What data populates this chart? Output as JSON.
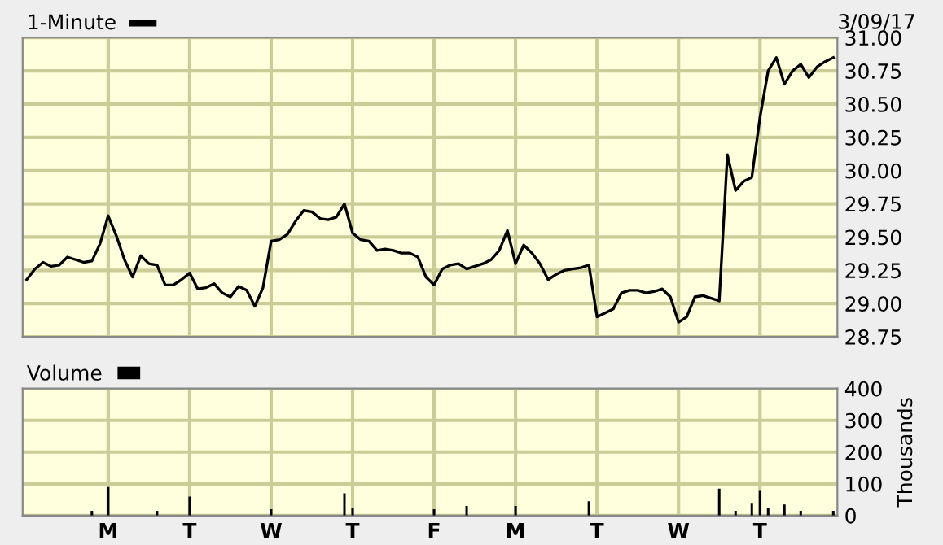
{
  "chart_data": [
    {
      "type": "line",
      "annotations": [
        "3/09/17"
      ],
      "legend": "top left",
      "grid": true,
      "tick_labels": "y",
      "categories": [
        null,
        null,
        null,
        null,
        null,
        null,
        null,
        null,
        null,
        null,
        null,
        null,
        null,
        null,
        null,
        null,
        null,
        null,
        null,
        null,
        null,
        null,
        null,
        null,
        null,
        null,
        null,
        null,
        null,
        null,
        null,
        null,
        null,
        null,
        null,
        null,
        null,
        null,
        null,
        null,
        null,
        null,
        null,
        null,
        null,
        null,
        null,
        null,
        null,
        null,
        null,
        null,
        null,
        null,
        null,
        null,
        null,
        null,
        null,
        null,
        null,
        null,
        null,
        null,
        null,
        null,
        null,
        null,
        null,
        null,
        null,
        null,
        null,
        null,
        null,
        null,
        null,
        null,
        null,
        null,
        null,
        null,
        null,
        null,
        null,
        null,
        null,
        null,
        null,
        null,
        null,
        null,
        null,
        null,
        null,
        null,
        null,
        null,
        null,
        null
      ],
      "ylim": [
        28.75,
        31.0
      ],
      "yticks": [
        {
          "value": 28.75,
          "label": "28.75"
        },
        {
          "value": 29.0,
          "label": "29.00"
        },
        {
          "value": 29.25,
          "label": "29.25"
        },
        {
          "value": 29.5,
          "label": "29.50"
        },
        {
          "value": 29.75,
          "label": "29.75"
        },
        {
          "value": 30.0,
          "label": "30.00"
        },
        {
          "value": 30.25,
          "label": "30.25"
        },
        {
          "value": 30.5,
          "label": "30.50"
        },
        {
          "value": 30.75,
          "label": "30.75"
        },
        {
          "value": 31.0,
          "label": "31.00"
        }
      ],
      "series": [
        {
          "name": "1-Minute",
          "color": "#000000",
          "values": [
            29.18,
            29.26,
            29.31,
            29.28,
            29.29,
            29.35,
            29.33,
            29.31,
            29.32,
            29.45,
            29.66,
            29.51,
            29.33,
            29.2,
            29.36,
            29.3,
            29.29,
            29.14,
            29.14,
            29.18,
            29.23,
            29.11,
            29.12,
            29.15,
            29.08,
            29.05,
            29.13,
            29.1,
            28.98,
            29.12,
            29.47,
            29.48,
            29.52,
            29.62,
            29.7,
            29.69,
            29.64,
            29.63,
            29.65,
            29.75,
            29.53,
            29.48,
            29.47,
            29.4,
            29.41,
            29.4,
            29.38,
            29.38,
            29.35,
            29.2,
            29.14,
            29.26,
            29.29,
            29.3,
            29.26,
            29.28,
            29.3,
            29.33,
            29.4,
            29.55,
            29.3,
            29.44,
            29.38,
            29.3,
            29.18,
            29.22,
            29.25,
            29.26,
            29.27,
            29.29,
            28.9,
            28.93,
            28.96,
            29.08,
            29.1,
            29.1,
            29.08,
            29.09,
            29.11,
            29.05,
            28.86,
            28.9,
            29.05,
            29.06,
            29.04,
            29.02,
            30.12,
            29.85,
            29.92,
            29.95,
            30.4,
            30.75,
            30.85,
            30.65,
            30.75,
            30.8,
            30.7,
            30.78,
            30.82,
            30.85
          ]
        }
      ]
    },
    {
      "type": "bar",
      "legend": "top left",
      "grid": true,
      "ylabel": "Thousands",
      "categories": [
        null,
        null,
        null,
        null,
        null,
        null,
        null,
        null,
        null,
        null,
        "M",
        null,
        null,
        null,
        null,
        null,
        null,
        null,
        null,
        null,
        "T",
        null,
        null,
        null,
        null,
        null,
        null,
        null,
        null,
        null,
        "W",
        null,
        null,
        null,
        null,
        null,
        null,
        null,
        null,
        null,
        "T",
        null,
        null,
        null,
        null,
        null,
        null,
        null,
        null,
        null,
        "F",
        null,
        null,
        null,
        null,
        null,
        null,
        null,
        null,
        null,
        "M",
        null,
        null,
        null,
        null,
        null,
        null,
        null,
        null,
        null,
        "T",
        null,
        null,
        null,
        null,
        null,
        null,
        null,
        null,
        null,
        "W",
        null,
        null,
        null,
        null,
        null,
        null,
        null,
        null,
        null,
        "T",
        null,
        null,
        null,
        null,
        null,
        null,
        null,
        null,
        null
      ],
      "ylim": [
        0,
        400
      ],
      "yticks": [
        0,
        100,
        200,
        300,
        400
      ],
      "series": [
        {
          "name": "Volume",
          "color": "#000000",
          "values": [
            0,
            0,
            0,
            0,
            0,
            0,
            0,
            0,
            15,
            0,
            90,
            0,
            0,
            0,
            0,
            0,
            15,
            0,
            0,
            0,
            60,
            0,
            0,
            0,
            0,
            0,
            0,
            0,
            0,
            0,
            20,
            0,
            0,
            0,
            0,
            0,
            0,
            0,
            0,
            70,
            25,
            0,
            0,
            0,
            0,
            0,
            0,
            0,
            0,
            0,
            20,
            0,
            0,
            0,
            30,
            0,
            0,
            0,
            0,
            0,
            30,
            0,
            0,
            0,
            0,
            0,
            0,
            0,
            0,
            45,
            0,
            0,
            0,
            0,
            0,
            0,
            0,
            0,
            0,
            0,
            0,
            0,
            0,
            0,
            0,
            85,
            0,
            15,
            0,
            40,
            80,
            25,
            0,
            35,
            0,
            15,
            0,
            0,
            0,
            15
          ]
        }
      ]
    }
  ]
}
